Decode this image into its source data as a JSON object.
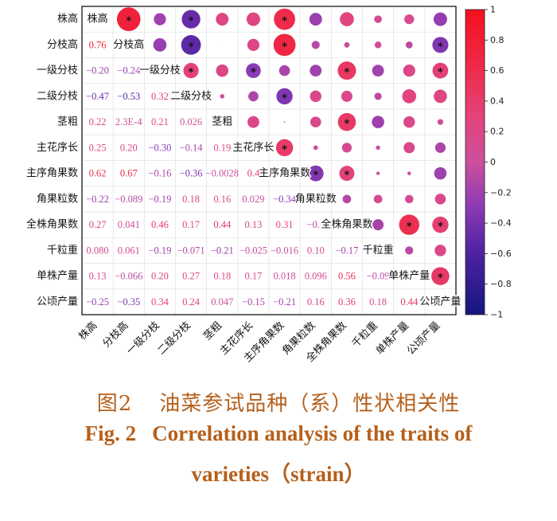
{
  "chart_data": {
    "type": "heatmap",
    "variables": [
      "株高",
      "分枝高",
      "一级分枝",
      "二级分枝",
      "茎粗",
      "主花序长",
      "主序角果数",
      "角果粒数",
      "全株角果数",
      "千粒重",
      "单株产量",
      "公顷产量"
    ],
    "labels": [
      [],
      [
        "0.76"
      ],
      [
        "−0.20",
        "−0.24"
      ],
      [
        "−0.47",
        "−0.53",
        "0.32"
      ],
      [
        "0.22",
        "2.3E-4",
        "0.21",
        "0.026"
      ],
      [
        "0.25",
        "0.20",
        "−0.30",
        "−0.14",
        "0.19"
      ],
      [
        "0.62",
        "0.67",
        "−0.16",
        "−0.36",
        "−0.0028",
        "0.4"
      ],
      [
        "−0.22",
        "−0.089",
        "−0.19",
        "0.18",
        "0.16",
        "0.029",
        "−0.34"
      ],
      [
        "0.27",
        "0.041",
        "0.46",
        "0.17",
        "0.44",
        "0.13",
        "0.31",
        "−0.1"
      ],
      [
        "0.080",
        "0.061",
        "−0.19",
        "−0.071",
        "−0.21",
        "−0.025",
        "−0.016",
        "0.10",
        "−0.17"
      ],
      [
        "0.13",
        "−0.066",
        "0.20",
        "0.27",
        "0.18",
        "0.17",
        "0.018",
        "0.096",
        "0.56",
        "−0.09"
      ],
      [
        "−0.25",
        "−0.35",
        "0.34",
        "0.24",
        "0.047",
        "−0.15",
        "−0.21",
        "0.16",
        "0.36",
        "0.18",
        "0.44"
      ]
    ],
    "values": [
      [],
      [
        0.76
      ],
      [
        -0.2,
        -0.24
      ],
      [
        -0.47,
        -0.53,
        0.32
      ],
      [
        0.22,
        0.00023,
        0.21,
        0.026
      ],
      [
        0.25,
        0.2,
        -0.3,
        -0.14,
        0.19
      ],
      [
        0.62,
        0.67,
        -0.16,
        -0.36,
        -0.0028,
        0.4
      ],
      [
        -0.22,
        -0.089,
        -0.19,
        0.18,
        0.16,
        0.029,
        -0.34
      ],
      [
        0.27,
        0.041,
        0.46,
        0.17,
        0.44,
        0.13,
        0.31,
        -0.1
      ],
      [
        0.08,
        0.061,
        -0.19,
        -0.071,
        -0.21,
        -0.025,
        -0.016,
        0.1,
        -0.17
      ],
      [
        0.13,
        -0.066,
        0.2,
        0.27,
        0.18,
        0.17,
        0.018,
        0.096,
        0.56,
        -0.09
      ],
      [
        -0.25,
        -0.35,
        0.34,
        0.24,
        0.047,
        -0.15,
        -0.21,
        0.16,
        0.36,
        0.18,
        0.44
      ]
    ],
    "significant": [
      [],
      [
        true
      ],
      [
        false,
        false
      ],
      [
        true,
        true,
        true
      ],
      [
        false,
        false,
        false,
        false
      ],
      [
        false,
        false,
        true,
        false,
        false
      ],
      [
        true,
        true,
        false,
        true,
        false,
        true
      ],
      [
        false,
        false,
        false,
        false,
        false,
        false,
        true
      ],
      [
        false,
        false,
        true,
        false,
        true,
        false,
        true,
        false
      ],
      [
        false,
        false,
        false,
        false,
        false,
        false,
        false,
        false,
        false
      ],
      [
        false,
        false,
        false,
        false,
        false,
        false,
        false,
        false,
        true,
        false
      ],
      [
        false,
        true,
        true,
        false,
        false,
        false,
        false,
        false,
        true,
        false,
        true
      ]
    ],
    "significance_marker": "*",
    "grid": true,
    "colorbar": {
      "position": "right",
      "min": -1,
      "max": 1,
      "ticks": [
        "1",
        "0.8",
        "0.6",
        "0.4",
        "0.2",
        "0",
        "−0.2",
        "−0.4",
        "−0.6",
        "−0.8",
        "−1"
      ]
    },
    "colormap": [
      {
        "value": 1,
        "color": "#f4101e"
      },
      {
        "value": 0.6,
        "color": "#ee2c4c"
      },
      {
        "value": 0.3,
        "color": "#e3437b"
      },
      {
        "value": 0,
        "color": "#cc4f9e"
      },
      {
        "value": -0.3,
        "color": "#8a3ab4"
      },
      {
        "value": -0.6,
        "color": "#4e22a0"
      },
      {
        "value": -1,
        "color": "#14167c"
      }
    ]
  },
  "caption": {
    "cn_number": "图2",
    "cn_title": "油菜参试品种（系）性状相关性",
    "en_number": "Fig. 2",
    "en_title_line1": "Correlation analysis of the traits of",
    "en_title_line2": "varieties（strain）"
  }
}
